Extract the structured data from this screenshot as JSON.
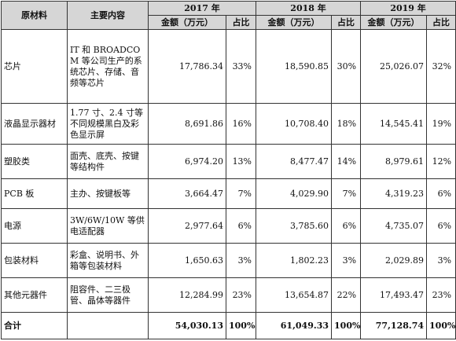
{
  "headers": {
    "material": "原材料",
    "content": "主要内容",
    "years": [
      "2017 年",
      "2018 年",
      "2019 年"
    ],
    "amount": "金额（万元）",
    "share": "占比"
  },
  "rows": [
    {
      "material": "芯片",
      "content": "IT 和 BROADCOM 等公司生产的系统芯片、存储、音频等芯片",
      "values": [
        "17,786.34",
        "33%",
        "18,590.85",
        "30%",
        "25,026.07",
        "32%"
      ]
    },
    {
      "material": "液晶显示器材",
      "content": "1.77 寸、2.4 寸等不同规模黑白及彩色显示屏",
      "values": [
        "8,691.86",
        "16%",
        "10,708.40",
        "18%",
        "14,545.41",
        "19%"
      ]
    },
    {
      "material": "塑胶类",
      "content": "面壳、底壳、按键等结构件",
      "values": [
        "6,974.20",
        "13%",
        "8,477.47",
        "14%",
        "8,979.61",
        "12%"
      ]
    },
    {
      "material": "PCB 板",
      "content": "主办、按键板等",
      "values": [
        "3,664.47",
        "7%",
        "4,029.90",
        "7%",
        "4,319.23",
        "6%"
      ]
    },
    {
      "material": "电源",
      "content": "3W/6W/10W 等供电适配器",
      "values": [
        "2,977.64",
        "6%",
        "3,785.60",
        "6%",
        "4,735.07",
        "6%"
      ]
    },
    {
      "material": "包装材料",
      "content": "彩盒、说明书、外箱等包装材料",
      "values": [
        "1,650.63",
        "3%",
        "1,802.23",
        "3%",
        "2,029.89",
        "3%"
      ]
    },
    {
      "material": "其他元器件",
      "content": "阻容件、二三极管、晶体等器件",
      "values": [
        "12,284.99",
        "23%",
        "13,654.87",
        "22%",
        "17,493.47",
        "23%"
      ]
    }
  ],
  "total": {
    "label": "合计",
    "values": [
      "54,030.13",
      "100%",
      "61,049.33",
      "100%",
      "77,128.74",
      "100%"
    ]
  }
}
